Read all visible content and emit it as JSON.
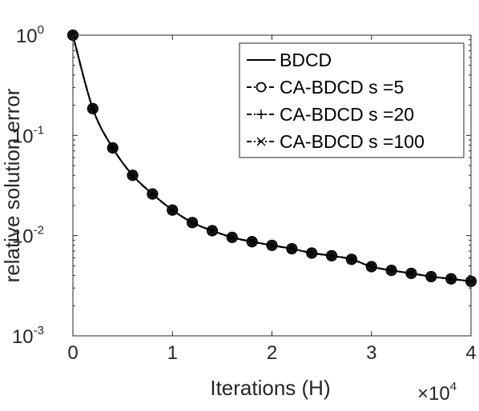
{
  "chart_data": {
    "type": "line",
    "xlabel": "Iterations (H)",
    "ylabel": "relative solution error",
    "x_multiplier": {
      "base": "×10",
      "exp": "4"
    },
    "xlim": [
      0,
      40000
    ],
    "ylim": [
      0.001,
      1
    ],
    "yscale": "log",
    "x_ticks": [
      {
        "value": 0,
        "label": "0"
      },
      {
        "value": 10000,
        "label": "1"
      },
      {
        "value": 20000,
        "label": "2"
      },
      {
        "value": 30000,
        "label": "3"
      },
      {
        "value": 40000,
        "label": "4"
      }
    ],
    "y_ticks": [
      {
        "value": 1,
        "base": "10",
        "exp": "0"
      },
      {
        "value": 0.1,
        "base": "10",
        "exp": "-1"
      },
      {
        "value": 0.01,
        "base": "10",
        "exp": "-2"
      },
      {
        "value": 0.001,
        "base": "10",
        "exp": "-3"
      }
    ],
    "grid": false,
    "legend_position": "top-right",
    "x": [
      0,
      2000,
      4000,
      6000,
      8000,
      10000,
      12000,
      14000,
      16000,
      18000,
      20000,
      22000,
      24000,
      26000,
      28000,
      30000,
      32000,
      34000,
      36000,
      38000,
      40000
    ],
    "series": [
      {
        "name": "BDCD",
        "marker": "none",
        "dash": "solid",
        "values": [
          1.0,
          0.185,
          0.075,
          0.04,
          0.026,
          0.018,
          0.0135,
          0.0112,
          0.0096,
          0.0087,
          0.008,
          0.0074,
          0.0067,
          0.0063,
          0.0058,
          0.0049,
          0.0045,
          0.0042,
          0.0039,
          0.0037,
          0.0035
        ]
      },
      {
        "name": "CA-BDCD s =5",
        "marker": "circle",
        "dash": "dashdot",
        "values": [
          1.0,
          0.185,
          0.075,
          0.04,
          0.026,
          0.018,
          0.0135,
          0.0112,
          0.0096,
          0.0087,
          0.008,
          0.0074,
          0.0067,
          0.0063,
          0.0058,
          0.0049,
          0.0045,
          0.0042,
          0.0039,
          0.0037,
          0.0035
        ]
      },
      {
        "name": "CA-BDCD s =20",
        "marker": "plus",
        "dash": "dashdot",
        "values": [
          1.0,
          0.185,
          0.075,
          0.04,
          0.026,
          0.018,
          0.0135,
          0.0112,
          0.0096,
          0.0087,
          0.008,
          0.0074,
          0.0067,
          0.0063,
          0.0058,
          0.0049,
          0.0045,
          0.0042,
          0.0039,
          0.0037,
          0.0035
        ]
      },
      {
        "name": "CA-BDCD s =100",
        "marker": "cross",
        "dash": "dashdot",
        "values": [
          1.0,
          0.185,
          0.075,
          0.04,
          0.026,
          0.018,
          0.0135,
          0.0112,
          0.0096,
          0.0087,
          0.008,
          0.0074,
          0.0067,
          0.0063,
          0.0058,
          0.0049,
          0.0045,
          0.0042,
          0.0039,
          0.0037,
          0.0035
        ]
      }
    ],
    "colors": {
      "line": "#000000",
      "marker_fill": "#222222",
      "axis": "#262626"
    }
  }
}
